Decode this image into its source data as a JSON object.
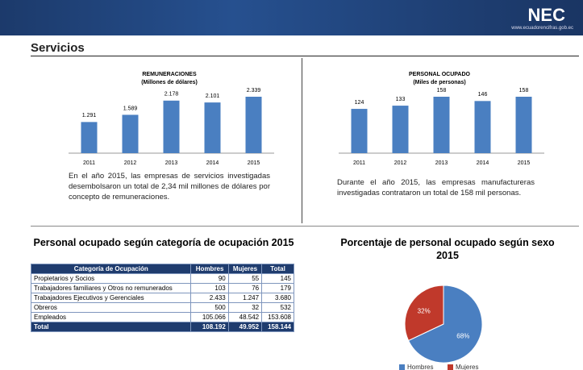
{
  "header": {
    "logo": "NEC",
    "url": "www.ecuadorencifras.gob.ec",
    "section": "Servicios"
  },
  "chart_data": [
    {
      "type": "bar",
      "title": "REMUNERACIONES",
      "subtitle": "(Millones de dólares)",
      "categories": [
        "2011",
        "2012",
        "2013",
        "2014",
        "2015"
      ],
      "values": [
        1291,
        1589,
        2178,
        2101,
        2339
      ],
      "value_labels": [
        "1.291",
        "1.589",
        "2.178",
        "2.101",
        "2.339"
      ],
      "color": "#4a7fc1"
    },
    {
      "type": "bar",
      "title": "PERSONAL OCUPADO",
      "subtitle": "(Miles de personas)",
      "categories": [
        "2011",
        "2012",
        "2013",
        "2014",
        "2015"
      ],
      "values": [
        124,
        133,
        158,
        146,
        158
      ],
      "color": "#4a7fc1"
    },
    {
      "type": "pie",
      "title": "Porcentaje de personal ocupado según sexo 2015",
      "categories": [
        "Hombres",
        "Mujeres"
      ],
      "values": [
        68,
        32
      ],
      "value_labels": [
        "68%",
        "32%"
      ],
      "colors": [
        "#4a7fc1",
        "#c0392b"
      ]
    }
  ],
  "paragraphs": [
    "En el año 2015, las empresas de servicios investigadas desembolsaron un total de 2,34 mil millones de dólares por concepto de remuneraciones.",
    "Durante el año 2015, las empresas manufactureras investigadas contrataron un total de 158 mil personas."
  ],
  "table": {
    "title": "Personal ocupado según categoría de ocupación 2015",
    "header": [
      "Categoría de Ocupación",
      "Hombres",
      "Mujeres",
      "Total"
    ],
    "rows": [
      [
        "Propietarios y Socios",
        "90",
        "55",
        "145"
      ],
      [
        "Trabajadores familiares y Otros no remunerados",
        "103",
        "76",
        "179"
      ],
      [
        "Trabajadores Ejecutivos y Gerenciales",
        "2.433",
        "1.247",
        "3.680"
      ],
      [
        "Obreros",
        "500",
        "32",
        "532"
      ],
      [
        "Empleados",
        "105.066",
        "48.542",
        "153.608"
      ],
      [
        "Total",
        "108.192",
        "49.952",
        "158.144"
      ]
    ]
  }
}
